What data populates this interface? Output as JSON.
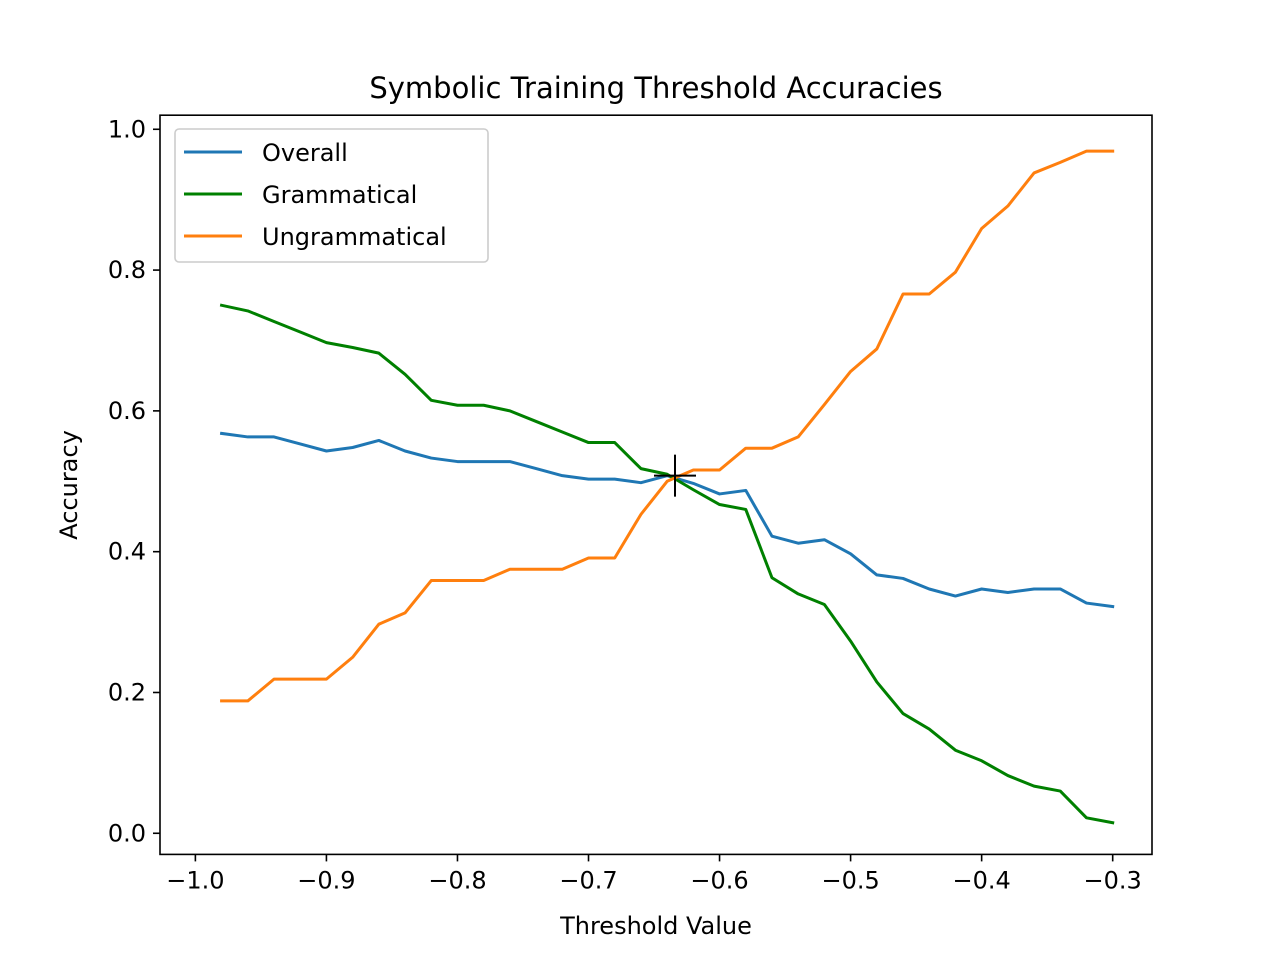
{
  "chart_data": {
    "type": "line",
    "title": "Symbolic Training Threshold Accuracies",
    "xlabel": "Threshold Value",
    "ylabel": "Accuracy",
    "xlim": [
      -1.027,
      -0.27
    ],
    "ylim": [
      -0.03,
      1.02
    ],
    "xticks": [
      -1.0,
      -0.9,
      -0.8,
      -0.7,
      -0.6,
      -0.5,
      -0.4,
      -0.3
    ],
    "xtick_labels": [
      "−1.0",
      "−0.9",
      "−0.8",
      "−0.7",
      "−0.6",
      "−0.5",
      "−0.4",
      "−0.3"
    ],
    "yticks": [
      0.0,
      0.2,
      0.4,
      0.6,
      0.8,
      1.0
    ],
    "ytick_labels": [
      "0.0",
      "0.2",
      "0.4",
      "0.6",
      "0.8",
      "1.0"
    ],
    "grid": false,
    "legend_position": "top-left",
    "x": [
      -0.98,
      -0.96,
      -0.94,
      -0.92,
      -0.9,
      -0.88,
      -0.86,
      -0.84,
      -0.82,
      -0.8,
      -0.78,
      -0.76,
      -0.74,
      -0.72,
      -0.7,
      -0.68,
      -0.66,
      -0.64,
      -0.62,
      -0.6,
      -0.58,
      -0.56,
      -0.54,
      -0.52,
      -0.5,
      -0.48,
      -0.46,
      -0.44,
      -0.42,
      -0.4,
      -0.38,
      -0.36,
      -0.34,
      -0.32,
      -0.3
    ],
    "series": [
      {
        "name": "Overall",
        "color": "#1f77b4",
        "values": [
          0.568,
          0.563,
          0.563,
          0.553,
          0.543,
          0.548,
          0.558,
          0.543,
          0.533,
          0.528,
          0.528,
          0.528,
          0.518,
          0.508,
          0.503,
          0.503,
          0.498,
          0.508,
          0.497,
          0.482,
          0.487,
          0.422,
          0.412,
          0.417,
          0.397,
          0.367,
          0.362,
          0.347,
          0.337,
          0.347,
          0.342,
          0.347,
          0.347,
          0.327,
          0.322
        ]
      },
      {
        "name": "Grammatical",
        "color": "#008000",
        "values": [
          0.75,
          0.742,
          0.727,
          0.712,
          0.697,
          0.69,
          0.682,
          0.652,
          0.615,
          0.608,
          0.608,
          0.6,
          0.585,
          0.57,
          0.555,
          0.555,
          0.518,
          0.51,
          0.488,
          0.467,
          0.46,
          0.363,
          0.34,
          0.325,
          0.273,
          0.215,
          0.17,
          0.148,
          0.118,
          0.103,
          0.082,
          0.067,
          0.06,
          0.022,
          0.015
        ]
      },
      {
        "name": "Ungrammatical",
        "color": "#ff7f0e",
        "values": [
          0.188,
          0.188,
          0.219,
          0.219,
          0.219,
          0.25,
          0.297,
          0.313,
          0.359,
          0.359,
          0.359,
          0.375,
          0.375,
          0.375,
          0.391,
          0.391,
          0.453,
          0.5,
          0.516,
          0.516,
          0.547,
          0.547,
          0.563,
          0.609,
          0.656,
          0.688,
          0.766,
          0.766,
          0.797,
          0.859,
          0.891,
          0.938,
          0.953,
          0.969,
          0.969
        ]
      }
    ],
    "marker": {
      "x": -0.634,
      "y": 0.508,
      "symbol": "+",
      "color": "#000000"
    }
  }
}
